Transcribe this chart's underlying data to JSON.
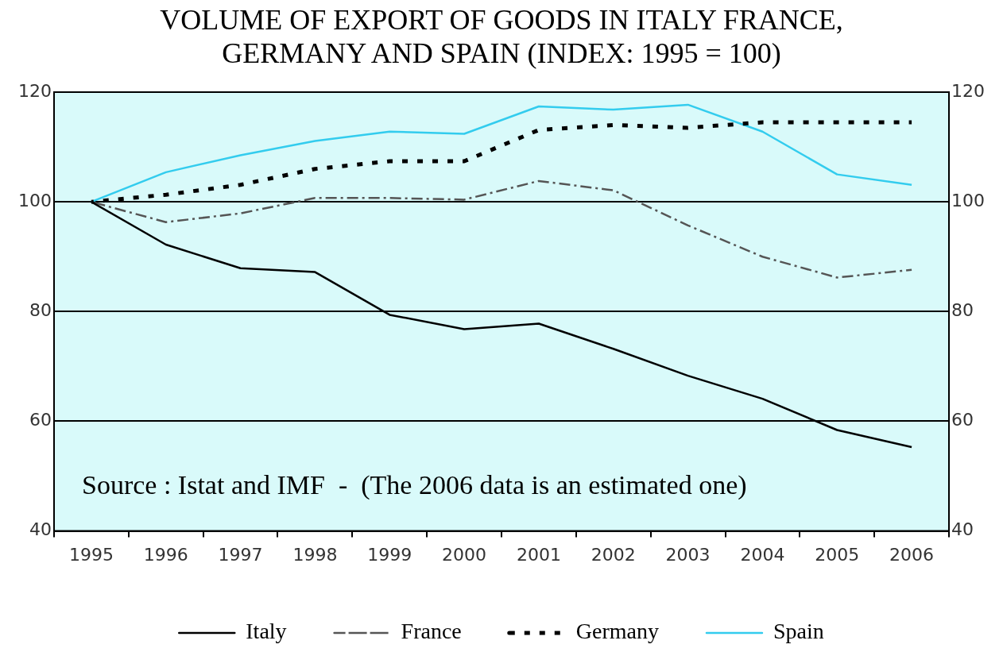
{
  "chart_data": {
    "type": "line",
    "title": "VOLUME OF EXPORT OF GOODS IN ITALY FRANCE, GERMANY AND SPAIN (INDEX: 1995 = 100)",
    "categories": [
      "1995",
      "1996",
      "1997",
      "1998",
      "1999",
      "2000",
      "2001",
      "2002",
      "2003",
      "2004",
      "2005",
      "2006"
    ],
    "series": [
      {
        "name": "Italy",
        "color": "#000000",
        "line_style": "solid",
        "values": [
          100,
          92.2,
          87.9,
          87.2,
          79.4,
          76.8,
          77.8,
          73.2,
          68.3,
          64.1,
          58.4,
          55.3
        ]
      },
      {
        "name": "France",
        "color": "#555555",
        "line_style": "dashed",
        "values": [
          100,
          96.3,
          97.9,
          100.7,
          100.7,
          100.4,
          103.8,
          102.1,
          95.7,
          90,
          86.2,
          87.6
        ]
      },
      {
        "name": "Germany",
        "color": "#000000",
        "line_style": "dotted",
        "values": [
          100,
          101.3,
          103.1,
          106,
          107.4,
          107.4,
          113.1,
          114,
          113.5,
          114.5,
          114.5,
          114.5
        ]
      },
      {
        "name": "Spain",
        "color": "#33ccee",
        "line_style": "solid",
        "values": [
          100,
          105.4,
          108.5,
          111.1,
          112.8,
          112.4,
          117.4,
          116.8,
          117.7,
          112.8,
          105,
          103.1
        ]
      }
    ],
    "ylim": [
      40,
      120
    ],
    "yticks": [
      40,
      60,
      80,
      100,
      120
    ],
    "y2lim": [
      40,
      120
    ],
    "y2ticks": [
      40,
      60,
      80,
      100,
      120
    ],
    "grid": "y",
    "legend": "bottom",
    "marker": "none",
    "annotations": [
      "Source : Istat and IMF  -  (The 2006 data is an estimated one)"
    ]
  }
}
